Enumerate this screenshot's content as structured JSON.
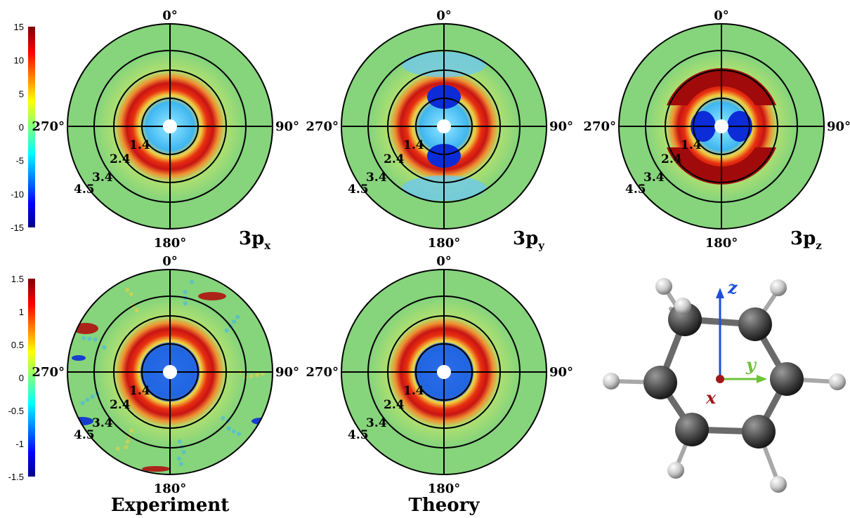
{
  "figure": {
    "colorbars": [
      {
        "name": "top",
        "ticks": [
          "15",
          "10",
          "5",
          "0",
          "-5",
          "-10",
          "-15"
        ],
        "range": [
          -15,
          15
        ]
      },
      {
        "name": "bottom",
        "ticks": [
          "1.5",
          "1",
          "0.5",
          "0",
          "-0.5",
          "-1",
          "-1.5"
        ],
        "range": [
          -1.5,
          1.5
        ]
      }
    ],
    "angles": {
      "top": "0°",
      "right": "90°",
      "bottom": "180°",
      "left": "270°"
    },
    "radii": [
      "1.4",
      "2.4",
      "3.4",
      "4.5"
    ],
    "panels": [
      {
        "id": "exp-3px",
        "label": "3p",
        "sub": "x",
        "pattern": "ring-hole",
        "noise": false
      },
      {
        "id": "thy-3py",
        "label": "3p",
        "sub": "y",
        "pattern": "py",
        "noise": false
      },
      {
        "id": "thy-3pz",
        "label": "3p",
        "sub": "z",
        "pattern": "pz",
        "noise": false
      },
      {
        "id": "exp-sum",
        "label": "",
        "sub": "",
        "pattern": "ring-hole",
        "noise": true
      },
      {
        "id": "thy-sum",
        "label": "",
        "sub": "",
        "pattern": "ring-hole",
        "noise": false
      }
    ],
    "column_labels": [
      "Experiment",
      "Theory"
    ],
    "molecule_axes": {
      "z": "z",
      "y": "y",
      "x": "x"
    },
    "colors": {
      "blue": "#0b2cd6",
      "green": "#7fd07a",
      "red": "#b01010",
      "axis_z": "#1d4fd8",
      "axis_y": "#6cc23a",
      "axis_x": "#a01818"
    }
  }
}
